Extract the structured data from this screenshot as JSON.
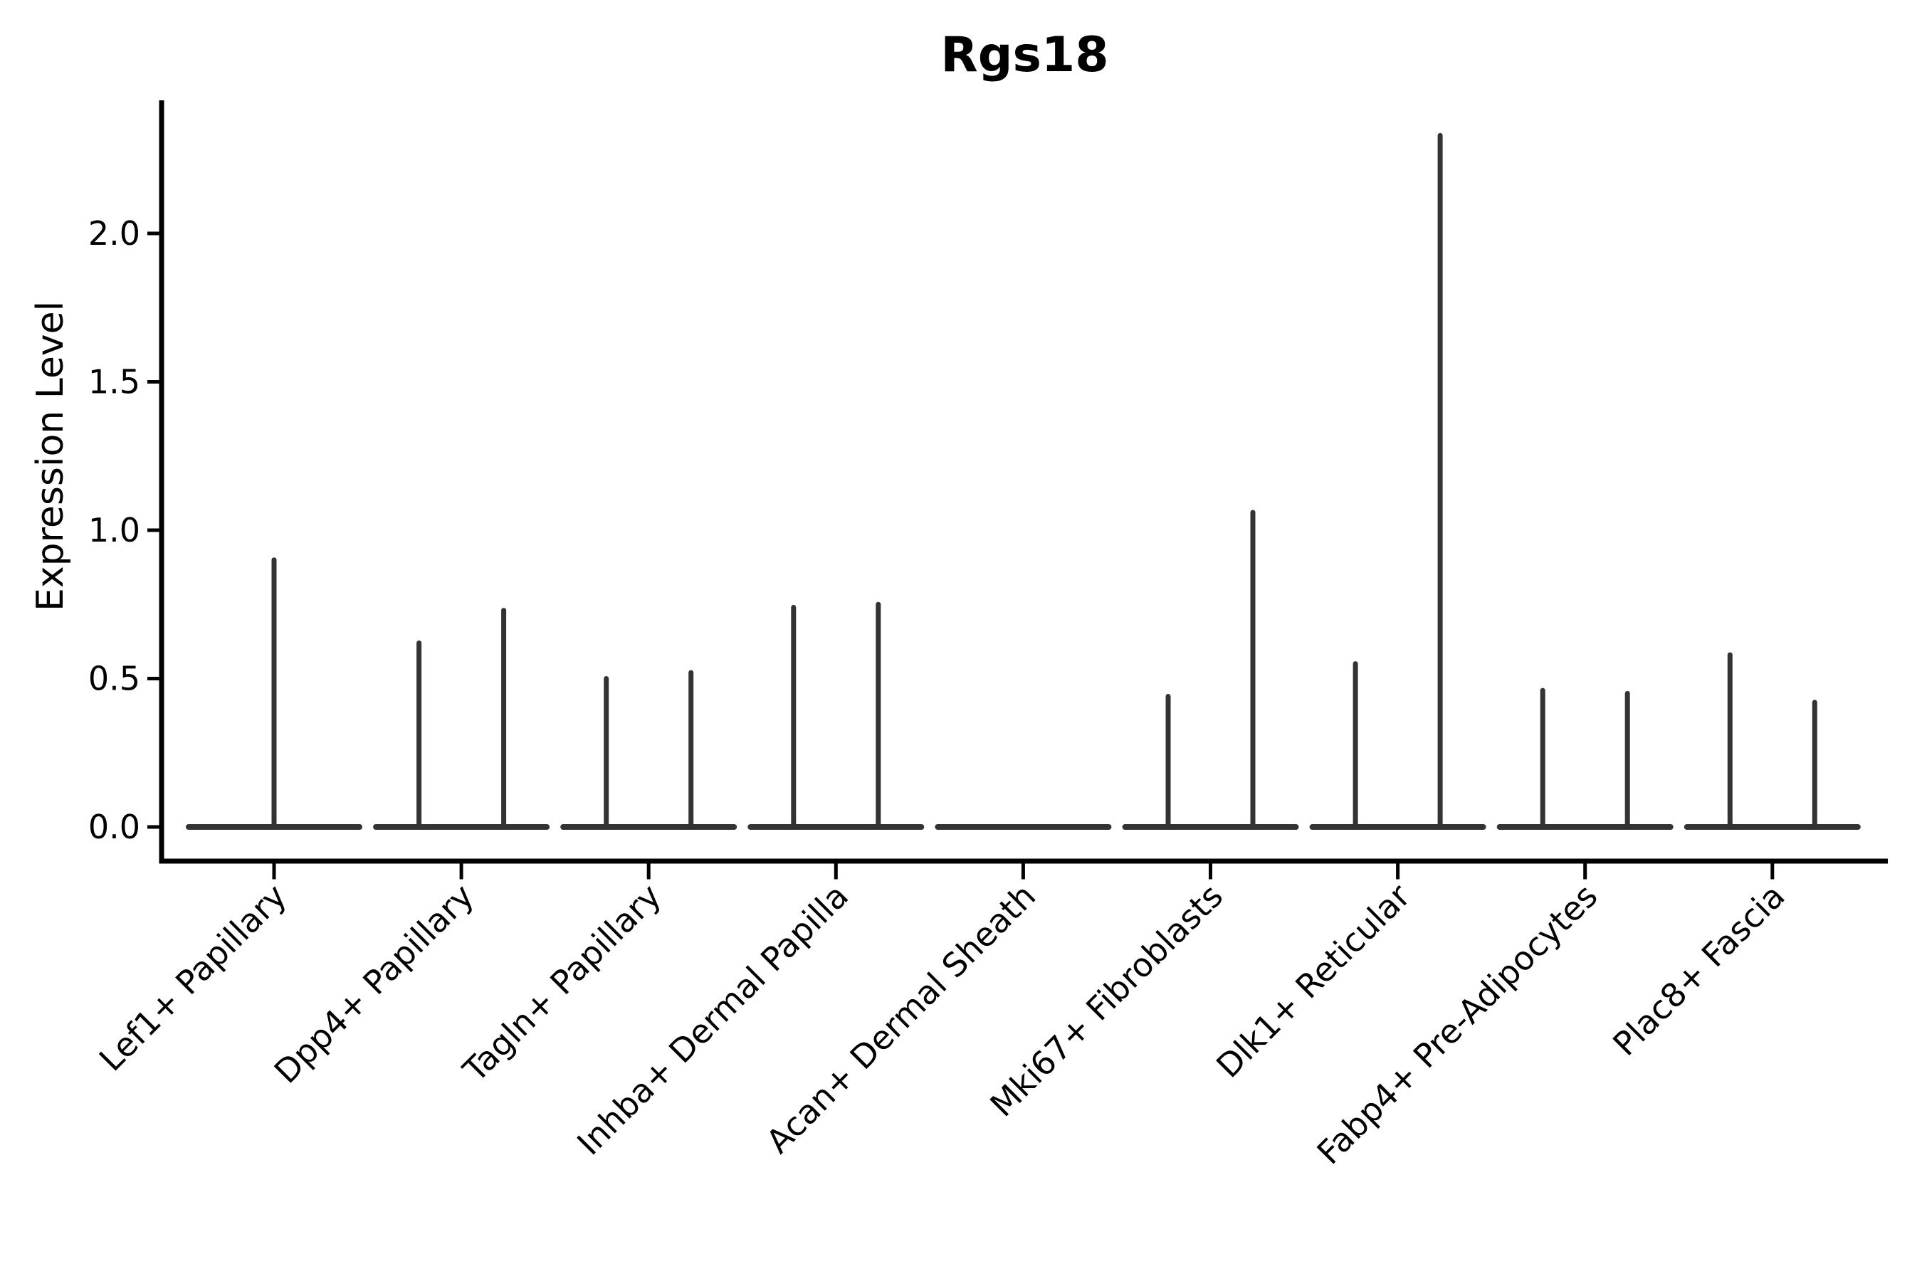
{
  "page": {
    "background": "#ffffff"
  },
  "chart_data": {
    "type": "violin",
    "title": "Rgs18",
    "ylabel": "Expression Level",
    "xlabel": "",
    "grid": false,
    "legend": null,
    "ylim": [
      -0.115,
      2.45
    ],
    "ytick_labels": [
      "0.0",
      "0.5",
      "1.0",
      "1.5",
      "2.0"
    ],
    "ytick_values": [
      0.0,
      0.5,
      1.0,
      1.5,
      2.0
    ],
    "style_note": "Sparse single-cell expression violins: each violin collapses to a thin vertical spike (max expression) over a wide flat base at y=0; categories with two sub-violins show two spikes",
    "categories": [
      "Lef1+ Papillary",
      "Dpp4+ Papillary",
      "Tagln+ Papillary",
      "Inhba+ Dermal Papilla",
      "Acan+ Dermal Sheath",
      "Mki67+ Fibroblasts",
      "Dlk1+ Reticular",
      "Fabp4+ Pre-Adipocytes",
      "Plac8+ Fascia"
    ],
    "violins": [
      {
        "category": "Lef1+ Papillary",
        "spikes": [
          {
            "position": "center",
            "max": 0.9
          }
        ]
      },
      {
        "category": "Dpp4+ Papillary",
        "spikes": [
          {
            "position": "left",
            "max": 0.62
          },
          {
            "position": "right",
            "max": 0.73
          }
        ]
      },
      {
        "category": "Tagln+ Papillary",
        "spikes": [
          {
            "position": "left",
            "max": 0.5
          },
          {
            "position": "right",
            "max": 0.52
          }
        ]
      },
      {
        "category": "Inhba+ Dermal Papilla",
        "spikes": [
          {
            "position": "left",
            "max": 0.74
          },
          {
            "position": "right",
            "max": 0.75
          }
        ]
      },
      {
        "category": "Acan+ Dermal Sheath",
        "spikes": []
      },
      {
        "category": "Mki67+ Fibroblasts",
        "spikes": [
          {
            "position": "left",
            "max": 0.44
          },
          {
            "position": "right",
            "max": 1.06
          }
        ]
      },
      {
        "category": "Dlk1+ Reticular",
        "spikes": [
          {
            "position": "left",
            "max": 0.55
          },
          {
            "position": "right",
            "max": 2.33
          }
        ]
      },
      {
        "category": "Fabp4+ Pre-Adipocytes",
        "spikes": [
          {
            "position": "left",
            "max": 0.46
          },
          {
            "position": "right",
            "max": 0.45
          }
        ]
      },
      {
        "category": "Plac8+ Fascia",
        "spikes": [
          {
            "position": "left",
            "max": 0.58
          },
          {
            "position": "right",
            "max": 0.42
          }
        ]
      }
    ],
    "colors": {
      "violin": "#333333",
      "axis": "#000000",
      "text": "#000000",
      "background": "#ffffff"
    }
  }
}
